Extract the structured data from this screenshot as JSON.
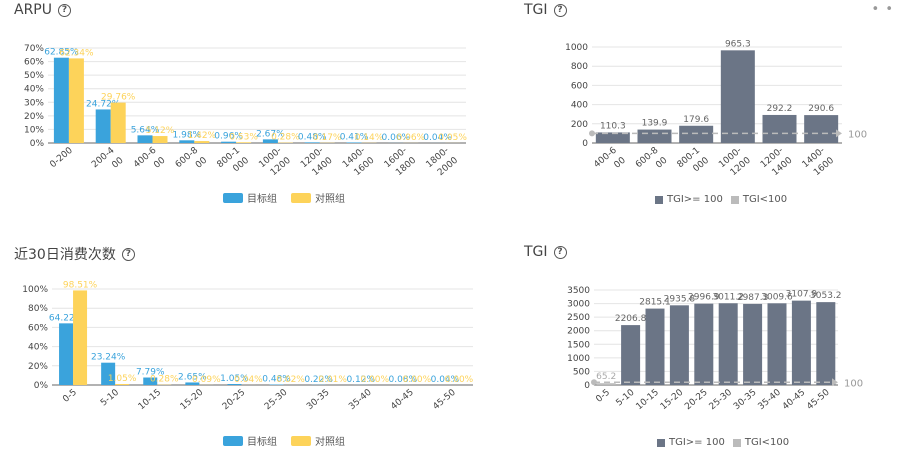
{
  "colors": {
    "target": "#3aa3dc",
    "control": "#fdd35a",
    "tgi_hi": "#6b7586",
    "tgi_lo": "#bbbbbb",
    "ref": "#bbbbbb",
    "grid": "#e4e4e4",
    "axis": "#666"
  },
  "icons": {
    "help": "help-circle-icon",
    "more": "more-horizontal-icon"
  },
  "panels": {
    "arpu": {
      "title": "ARPU",
      "legend": [
        "目标组",
        "对照组"
      ]
    },
    "tgi1": {
      "title": "TGI",
      "legend": [
        "TGI>= 100",
        "TGI<100"
      ]
    },
    "freq": {
      "title": "近30日消费次数",
      "legend": [
        "目标组",
        "对照组"
      ]
    },
    "tgi2": {
      "title": "TGI",
      "legend": [
        "TGI>= 100",
        "TGI<100"
      ]
    }
  },
  "chart_data": [
    {
      "type": "bar",
      "title": "ARPU",
      "categories": [
        "0-200",
        "200-400",
        "400-600",
        "600-800",
        "800-1000",
        "1000-1200",
        "1200-1400",
        "1400-1600",
        "1600-1800",
        "1800-2000"
      ],
      "tick_labels": [
        [
          "0-200"
        ],
        [
          "200-4",
          "00"
        ],
        [
          "400-6",
          "00"
        ],
        [
          "600-8",
          "00"
        ],
        [
          "800-1",
          "000"
        ],
        [
          "1000-",
          "1200"
        ],
        [
          "1200-",
          "1400"
        ],
        [
          "1400-",
          "1600"
        ],
        [
          "1600-",
          "1800"
        ],
        [
          "1800-",
          "2000"
        ]
      ],
      "series": [
        {
          "name": "目标组",
          "values": [
            62.85,
            24.72,
            5.64,
            1.98,
            0.96,
            2.67,
            0.48,
            0.41,
            0.06,
            0.04
          ],
          "labels": [
            "62.85%",
            "24.72%",
            "5.64%",
            "1.98%",
            "0.96%",
            "2.67%",
            "0.48%",
            "0.41%",
            "0.06%",
            "0.04%"
          ]
        },
        {
          "name": "对照组",
          "values": [
            62.34,
            29.76,
            5.12,
            1.42,
            0.53,
            0.28,
            0.17,
            0.14,
            0.06,
            0.05
          ],
          "labels": [
            "62.34%",
            "29.76%",
            "5.12%",
            "1.42%",
            "0.53%",
            "0.28%",
            "0.17%",
            "0.14%",
            "0.06%",
            "0.05%"
          ]
        }
      ],
      "ylim": [
        0,
        70
      ],
      "yticks": [
        "0%",
        "10%",
        "20%",
        "30%",
        "40%",
        "50%",
        "60%",
        "70%"
      ],
      "ytick_values": [
        0,
        10,
        20,
        30,
        40,
        50,
        60,
        70
      ],
      "grid": true,
      "legend": "bottom"
    },
    {
      "type": "bar",
      "title": "TGI",
      "categories": [
        "400-600",
        "600-800",
        "800-1000",
        "1000-1200",
        "1200-1400",
        "1400-1600"
      ],
      "tick_labels": [
        [
          "400-6",
          "00"
        ],
        [
          "600-8",
          "00"
        ],
        [
          "800-1",
          "000"
        ],
        [
          "1000-",
          "1200"
        ],
        [
          "1200-",
          "1400"
        ],
        [
          "1400-",
          "1600"
        ]
      ],
      "values": [
        110.3,
        139.9,
        179.6,
        965.3,
        292.2,
        290.6
      ],
      "labels": [
        "110.3",
        "139.9",
        "179.6",
        "965.3",
        "292.2",
        "290.6"
      ],
      "series": [
        {
          "name": "TGI>= 100"
        },
        {
          "name": "TGI<100"
        }
      ],
      "reference_line": {
        "value": 100,
        "label": "100"
      },
      "ylim": [
        0,
        1000
      ],
      "yticks": [
        "0",
        "200",
        "400",
        "600",
        "800",
        "1000"
      ],
      "ytick_values": [
        0,
        200,
        400,
        600,
        800,
        1000
      ],
      "grid": true,
      "legend": "bottom"
    },
    {
      "type": "bar",
      "title": "近30日消费次数",
      "categories": [
        "0-5",
        "5-10",
        "10-15",
        "15-20",
        "20-25",
        "25-30",
        "30-35",
        "35-40",
        "40-45",
        "45-50"
      ],
      "tick_labels": [
        [
          "0-5"
        ],
        [
          "5-10"
        ],
        [
          "10-15"
        ],
        [
          "15-20"
        ],
        [
          "20-25"
        ],
        [
          "25-30"
        ],
        [
          "30-35"
        ],
        [
          "35-40"
        ],
        [
          "40-45"
        ],
        [
          "45-50"
        ]
      ],
      "series": [
        {
          "name": "目标组",
          "values": [
            64.22,
            23.24,
            7.79,
            2.65,
            1.05,
            0.48,
            0.22,
            0.12,
            0.08,
            0.04
          ],
          "labels": [
            "64.22%",
            "23.24%",
            "7.79%",
            "2.65%",
            "1.05%",
            "0.48%",
            "0.22%",
            "0.12%",
            "0.08%",
            "0.04%"
          ]
        },
        {
          "name": "对照组",
          "values": [
            98.51,
            1.05,
            0.28,
            0.09,
            0.04,
            0.02,
            0.01,
            0.0,
            0.0,
            0.0
          ],
          "labels": [
            "98.51%",
            "1.05%",
            "0.28%",
            "0.09%",
            "0.04%",
            "0.02%",
            "0.01%",
            "0.00%",
            "0.00%",
            "0.00%"
          ]
        }
      ],
      "ylim": [
        0,
        100
      ],
      "yticks": [
        "0%",
        "20%",
        "40%",
        "60%",
        "80%",
        "100%"
      ],
      "ytick_values": [
        0,
        20,
        40,
        60,
        80,
        100
      ],
      "grid": true,
      "legend": "bottom"
    },
    {
      "type": "bar",
      "title": "TGI",
      "categories": [
        "0-5",
        "5-10",
        "10-15",
        "15-20",
        "20-25",
        "25-30",
        "30-35",
        "35-40",
        "40-45",
        "45-50"
      ],
      "tick_labels": [
        [
          "0-5"
        ],
        [
          "5-10"
        ],
        [
          "10-15"
        ],
        [
          "15-20"
        ],
        [
          "20-25"
        ],
        [
          "25-30"
        ],
        [
          "30-35"
        ],
        [
          "35-40"
        ],
        [
          "40-45"
        ],
        [
          "45-50"
        ]
      ],
      "values": [
        65.2,
        2206.8,
        2815.1,
        2935.8,
        2996.9,
        3011.2,
        2987.3,
        3009.6,
        3107.9,
        3053.2
      ],
      "labels": [
        "65.2",
        "2206.8",
        "2815.1",
        "2935.8",
        "2996.9",
        "3011.2",
        "2987.3",
        "3009.6",
        "3107.9",
        "3053.2"
      ],
      "series": [
        {
          "name": "TGI>= 100"
        },
        {
          "name": "TGI<100"
        }
      ],
      "reference_line": {
        "value": 100,
        "label": "100"
      },
      "ylim": [
        0,
        3500
      ],
      "yticks": [
        "0",
        "500",
        "1000",
        "1500",
        "2000",
        "2500",
        "3000",
        "3500"
      ],
      "ytick_values": [
        0,
        500,
        1000,
        1500,
        2000,
        2500,
        3000,
        3500
      ],
      "grid": true,
      "legend": "bottom"
    }
  ]
}
